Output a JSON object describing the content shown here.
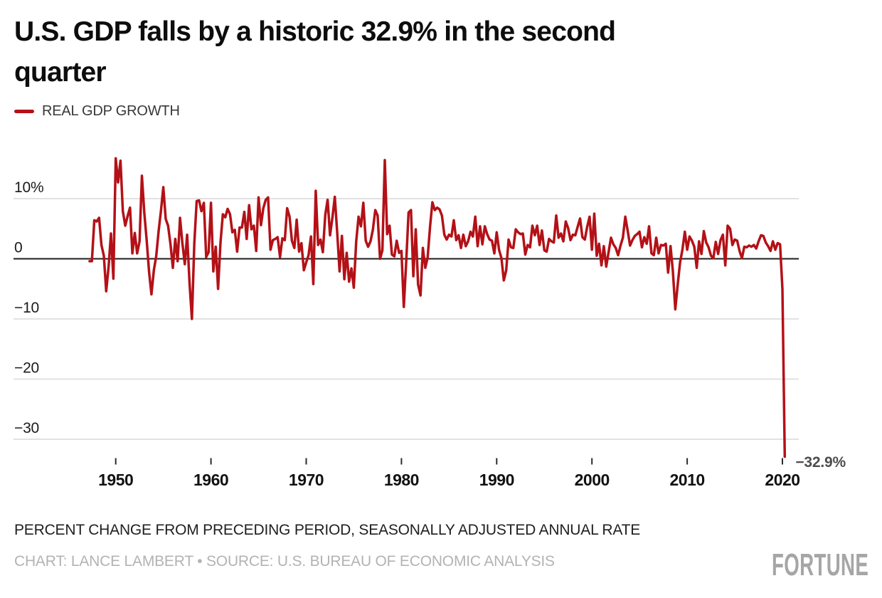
{
  "header": {
    "title_line1": "U.S. GDP falls by a historic 32.9% in the second",
    "title_line2": "quarter",
    "legend": {
      "label": "REAL GDP GROWTH",
      "swatch_color": "#b31117"
    }
  },
  "chart_data": {
    "type": "line",
    "title": "U.S. GDP falls by a historic 32.9% in the second quarter",
    "xlabel": "",
    "ylabel": "",
    "xlim": [
      1947,
      2021.5
    ],
    "ylim": [
      -34.5,
      17.5
    ],
    "grid": "horizontal",
    "legend_position": "top-left",
    "line_color": "#b31117",
    "y_ticks": [
      {
        "value": 10,
        "label": "10%"
      },
      {
        "value": 0,
        "label": "0"
      },
      {
        "value": -10,
        "label": "−10"
      },
      {
        "value": -20,
        "label": "−20"
      },
      {
        "value": -30,
        "label": "−30"
      }
    ],
    "x_ticks": [
      {
        "value": 1950,
        "label": "1950"
      },
      {
        "value": 1960,
        "label": "1960"
      },
      {
        "value": 1970,
        "label": "1970"
      },
      {
        "value": 1980,
        "label": "1980"
      },
      {
        "value": 1990,
        "label": "1990"
      },
      {
        "value": 2000,
        "label": "2000"
      },
      {
        "value": 2010,
        "label": "2010"
      },
      {
        "value": 2020,
        "label": "2020"
      }
    ],
    "annotation": {
      "label": "−32.9%",
      "year": 2020.25,
      "value": -32.9
    },
    "series": [
      {
        "name": "REAL GDP GROWTH",
        "color": "#b31117",
        "start_year": 1947.25,
        "step_years": 0.25,
        "unit": "percent change, SAAR",
        "values": [
          -0.4,
          -0.4,
          6.4,
          6.2,
          6.8,
          2.3,
          0.5,
          -5.4,
          -1.3,
          4.2,
          -3.3,
          16.7,
          12.7,
          16.3,
          7.9,
          5.5,
          7.1,
          8.5,
          0.9,
          4.3,
          0.9,
          2.9,
          13.8,
          7.6,
          3.1,
          -2.2,
          -5.9,
          -1.9,
          0.4,
          4.6,
          8.0,
          11.9,
          6.6,
          5.5,
          2.4,
          -1.5,
          3.3,
          -0.4,
          6.8,
          2.6,
          -0.9,
          4.0,
          -4.1,
          -10.0,
          2.6,
          9.6,
          9.7,
          7.9,
          9.3,
          0.3,
          1.1,
          9.3,
          -2.1,
          2.0,
          -5.0,
          2.7,
          7.4,
          6.9,
          8.3,
          7.4,
          4.4,
          4.8,
          1.2,
          5.2,
          5.2,
          7.8,
          3.3,
          8.9,
          4.9,
          5.5,
          1.3,
          10.2,
          5.6,
          8.4,
          9.8,
          10.2,
          1.5,
          3.1,
          3.3,
          3.6,
          0.3,
          3.4,
          3.1,
          8.4,
          7.0,
          3.0,
          1.8,
          6.5,
          1.2,
          2.6,
          -1.9,
          -0.6,
          0.6,
          3.7,
          -4.2,
          11.3,
          2.3,
          3.2,
          1.1,
          7.3,
          9.8,
          3.9,
          6.8,
          10.3,
          4.5,
          -2.1,
          3.8,
          -3.4,
          1.0,
          -3.8,
          -1.6,
          -4.8,
          2.9,
          7.0,
          5.4,
          9.3,
          3.0,
          2.0,
          2.9,
          4.8,
          8.1,
          7.2,
          0.0,
          1.4,
          16.4,
          4.1,
          5.5,
          0.7,
          0.4,
          3.0,
          1.0,
          1.3,
          -8.0,
          -0.5,
          7.7,
          8.1,
          -2.9,
          4.9,
          -4.3,
          -6.1,
          1.8,
          -1.5,
          0.2,
          5.3,
          9.4,
          8.1,
          8.5,
          8.2,
          7.2,
          4.0,
          3.2,
          4.0,
          3.7,
          6.4,
          3.1,
          3.9,
          1.8,
          4.0,
          2.1,
          2.9,
          4.5,
          3.7,
          7.0,
          2.1,
          5.4,
          2.4,
          5.4,
          4.1,
          3.2,
          3.0,
          0.9,
          4.4,
          1.5,
          0.1,
          -3.6,
          -1.9,
          3.2,
          1.9,
          1.8,
          4.9,
          4.4,
          4.1,
          4.2,
          0.7,
          2.3,
          1.9,
          5.5,
          3.9,
          5.5,
          2.3,
          4.7,
          1.4,
          1.2,
          3.3,
          2.9,
          2.7,
          7.2,
          3.5,
          4.2,
          2.9,
          6.2,
          5.1,
          3.1,
          4.0,
          3.9,
          5.3,
          6.7,
          3.6,
          3.2,
          5.3,
          7.0,
          1.5,
          7.5,
          0.5,
          2.5,
          -1.1,
          2.1,
          -1.3,
          1.1,
          3.5,
          2.4,
          1.8,
          0.6,
          2.2,
          3.5,
          7.0,
          4.7,
          2.2,
          3.1,
          3.8,
          4.1,
          4.5,
          1.9,
          3.6,
          2.5,
          5.4,
          0.9,
          0.6,
          3.5,
          0.9,
          2.3,
          2.2,
          2.5,
          -2.3,
          2.1,
          -2.1,
          -8.4,
          -4.4,
          -0.6,
          1.5,
          4.5,
          1.5,
          3.7,
          3.0,
          2.0,
          -1.5,
          2.9,
          0.8,
          4.6,
          2.7,
          1.9,
          0.5,
          0.1,
          2.8,
          0.8,
          3.1,
          4.0,
          -1.1,
          5.5,
          5.0,
          2.3,
          3.2,
          3.0,
          1.3,
          0.1,
          2.0,
          1.9,
          2.2,
          2.0,
          2.3,
          1.7,
          2.9,
          3.9,
          3.8,
          2.7,
          2.1,
          1.3,
          2.9,
          1.5,
          2.6,
          2.4,
          -5.0,
          -32.9
        ]
      }
    ]
  },
  "footer": {
    "note": "PERCENT CHANGE FROM PRECEDING PERIOD, SEASONALLY ADJUSTED ANNUAL RATE",
    "credit": "CHART: LANCE LAMBERT • SOURCE: U.S. BUREAU OF ECONOMIC ANALYSIS"
  },
  "branding": {
    "logo_text": "FORTUNE"
  },
  "colors": {
    "line": "#b31117",
    "gridline": "#d9d9d9",
    "zero_line": "#1d1d1d",
    "axis_label": "#1a1a1a",
    "annotation": "#4d4d4d",
    "title": "#0d0d0d",
    "note": "#1f1f1f",
    "credit": "#b3b3b3",
    "logo": "#a6a6a6"
  }
}
